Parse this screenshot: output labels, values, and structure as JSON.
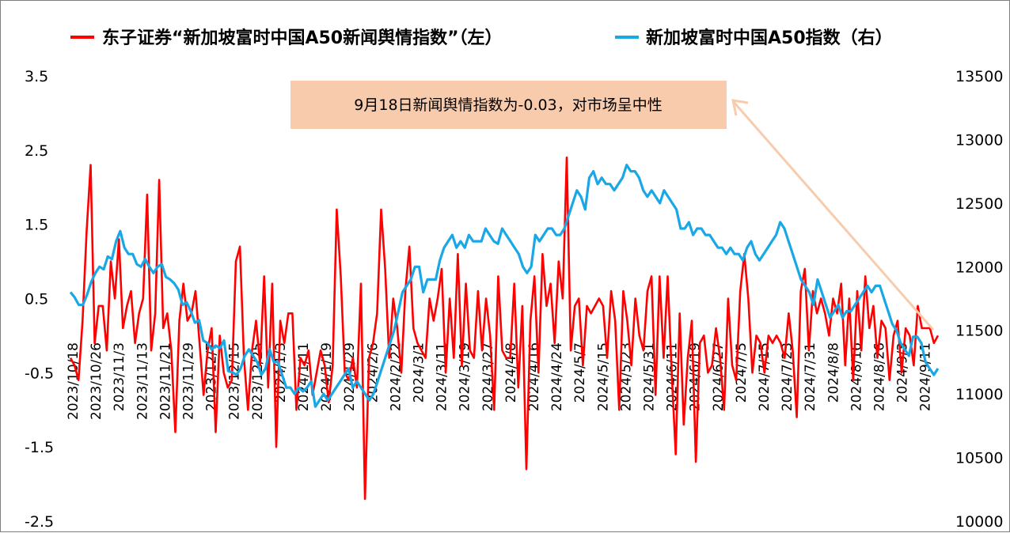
{
  "chart_data": {
    "type": "line",
    "legend": {
      "position": "top",
      "entries": [
        {
          "label": "东子证券“新加坡富时中国A50新闻舆情指数”（左）",
          "color": "#ff0000"
        },
        {
          "label": "新加坡富时中国A50指数（右）",
          "color": "#1aa7e6"
        }
      ]
    },
    "y_left": {
      "min": -2.5,
      "max": 3.5,
      "ticks": [
        "3.5",
        "2.5",
        "1.5",
        "0.5",
        "-0.5",
        "-1.5",
        "-2.5"
      ]
    },
    "y_right": {
      "min": 10000,
      "max": 13500,
      "ticks": [
        "13500",
        "13000",
        "12500",
        "12000",
        "11500",
        "11000",
        "10500",
        "10000"
      ]
    },
    "x_tick_labels": [
      "2023/10/18",
      "2023/10/26",
      "2023/11/3",
      "2023/11/13",
      "2023/11/21",
      "2023/11/29",
      "2023/12/7",
      "2023/12/15",
      "2023/12/25",
      "2024/1/3",
      "2024/1/11",
      "2024/1/19",
      "2024/1/29",
      "2024/2/6",
      "2024/2/22",
      "2024/3/1",
      "2024/3/11",
      "2024/3/19",
      "2024/3/27",
      "2024/4/8",
      "2024/4/16",
      "2024/4/24",
      "2024/5/7",
      "2024/5/15",
      "2024/5/23",
      "2024/5/31",
      "2024/6/11",
      "2024/6/19",
      "2024/6/27",
      "2024/7/5",
      "2024/7/15",
      "2024/7/23",
      "2024/7/31",
      "2024/8/8",
      "2024/8/16",
      "2024/8/26",
      "2024/9/3",
      "2024/9/11"
    ],
    "grid": false,
    "annotation": {
      "text": "9月18日新闻舆情指数为-0.03，对市场呈中性",
      "bg": "#f8cbad",
      "arrow_color": "#f8cbad"
    },
    "series": [
      {
        "name": "东子证券“新加坡富时中国A50新闻舆情指数”（左）",
        "axis": "left",
        "color": "#ff0000",
        "values": [
          -0.3,
          -0.4,
          -0.6,
          0.2,
          1.4,
          2.3,
          -0.1,
          0.4,
          0.4,
          -0.2,
          1.0,
          0.5,
          1.3,
          0.1,
          0.4,
          0.6,
          -0.1,
          0.3,
          0.5,
          1.9,
          -0.2,
          0.3,
          2.1,
          0.1,
          0.3,
          -0.2,
          -1.3,
          0.2,
          0.7,
          0.2,
          0.3,
          0.6,
          -0.1,
          -0.8,
          -0.2,
          0.1,
          -1.3,
          0.0,
          -0.5,
          -0.7,
          -0.6,
          1.0,
          1.2,
          -0.3,
          -1.0,
          -0.2,
          0.2,
          -0.4,
          0.8,
          -0.7,
          0.7,
          -1.5,
          0.2,
          -0.1,
          0.3,
          0.3,
          -1.0,
          -0.3,
          -0.4,
          -0.2,
          -0.8,
          -0.5,
          -0.2,
          -0.4,
          -0.9,
          -0.4,
          1.7,
          0.8,
          -0.5,
          -0.6,
          -0.3,
          -0.7,
          0.7,
          -2.2,
          -0.3,
          -0.1,
          0.3,
          1.7,
          0.9,
          -0.3,
          0.5,
          0.1,
          -0.5,
          0.6,
          1.2,
          0.1,
          -0.1,
          -0.2,
          -0.3,
          0.5,
          0.2,
          0.5,
          0.9,
          -0.5,
          0.5,
          -0.3,
          1.1,
          -0.4,
          0.7,
          -0.2,
          -0.3,
          0.6,
          -0.2,
          0.5,
          0.0,
          -1.0,
          0.8,
          -0.2,
          -0.3,
          -0.3,
          0.7,
          -0.7,
          0.4,
          -1.8,
          0.2,
          0.8,
          -0.5,
          1.1,
          0.4,
          0.7,
          -0.1,
          1.0,
          0.5,
          2.4,
          -0.2,
          0.4,
          0.5,
          -0.4,
          0.4,
          0.3,
          0.4,
          0.5,
          0.4,
          -0.3,
          0.6,
          0.2,
          -1.0,
          0.6,
          0.2,
          -0.4,
          0.5,
          0.0,
          -0.2,
          0.6,
          0.8,
          -0.8,
          0.8,
          -0.3,
          0.8,
          -0.5,
          -1.6,
          0.3,
          -1.2,
          -0.3,
          0.2,
          -1.7,
          -0.1,
          0.0,
          -0.5,
          -0.4,
          0.1,
          -0.3,
          -1.0,
          0.5,
          -0.4,
          -0.6,
          0.6,
          1.1,
          0.5,
          -0.5,
          0.0,
          -0.1,
          -0.5,
          0.0,
          -0.1,
          0.0,
          -0.1,
          -0.3,
          0.3,
          -0.2,
          -1.1,
          0.6,
          0.9,
          -0.2,
          0.6,
          0.3,
          0.5,
          0.3,
          0.0,
          0.5,
          0.3,
          0.7,
          -0.4,
          0.5,
          -0.6,
          0.6,
          -0.2,
          0.8,
          0.1,
          0.4,
          -0.3,
          0.2,
          0.1,
          -0.6,
          0.0,
          0.2,
          -0.5,
          0.1,
          0.0,
          -0.4,
          0.4,
          0.1,
          0.1,
          0.1,
          -0.1,
          0.0
        ]
      },
      {
        "name": "新加坡富时中国A50指数（右）",
        "axis": "right",
        "color": "#1aa7e6",
        "values": [
          11800,
          11760,
          11700,
          11700,
          11780,
          11880,
          11950,
          12000,
          11980,
          12080,
          12060,
          12200,
          12280,
          12150,
          12100,
          12100,
          12020,
          12000,
          12060,
          12000,
          11950,
          12000,
          12020,
          11920,
          11900,
          11870,
          11820,
          11700,
          11720,
          11650,
          11560,
          11580,
          11420,
          11400,
          11350,
          11380,
          11360,
          11420,
          11180,
          11170,
          11150,
          11200,
          11300,
          11350,
          11300,
          11250,
          11150,
          11200,
          11350,
          11250,
          11250,
          11150,
          11050,
          11050,
          11000,
          11050,
          11020,
          11050,
          11100,
          10900,
          10950,
          11000,
          10950,
          11000,
          11050,
          11100,
          11150,
          11200,
          11050,
          11100,
          11050,
          11000,
          10950,
          11000,
          11100,
          11200,
          11300,
          11400,
          11500,
          11650,
          11800,
          11850,
          11900,
          12000,
          12000,
          11800,
          11900,
          11900,
          11900,
          12050,
          12150,
          12200,
          12250,
          12150,
          12200,
          12150,
          12250,
          12200,
          12200,
          12200,
          12300,
          12250,
          12200,
          12180,
          12300,
          12250,
          12200,
          12150,
          12100,
          12000,
          11950,
          12000,
          12250,
          12200,
          12250,
          12300,
          12300,
          12250,
          12250,
          12300,
          12400,
          12500,
          12600,
          12550,
          12450,
          12700,
          12750,
          12650,
          12700,
          12650,
          12650,
          12600,
          12650,
          12700,
          12800,
          12750,
          12750,
          12700,
          12600,
          12550,
          12600,
          12550,
          12500,
          12600,
          12550,
          12500,
          12450,
          12300,
          12300,
          12350,
          12250,
          12300,
          12300,
          12250,
          12250,
          12200,
          12150,
          12150,
          12100,
          12150,
          12100,
          12100,
          12050,
          12150,
          12200,
          12100,
          12050,
          12100,
          12150,
          12200,
          12250,
          12350,
          12300,
          12200,
          12100,
          12000,
          11900,
          11850,
          11800,
          11700,
          11900,
          11800,
          11700,
          11600,
          11650,
          11700,
          11600,
          11650,
          11650,
          11700,
          11750,
          11800,
          11850,
          11800,
          11850,
          11850,
          11750,
          11650,
          11550,
          11500,
          11400,
          11350,
          11300,
          11450,
          11450,
          11400,
          11250,
          11200,
          11150,
          11200
        ]
      }
    ]
  }
}
